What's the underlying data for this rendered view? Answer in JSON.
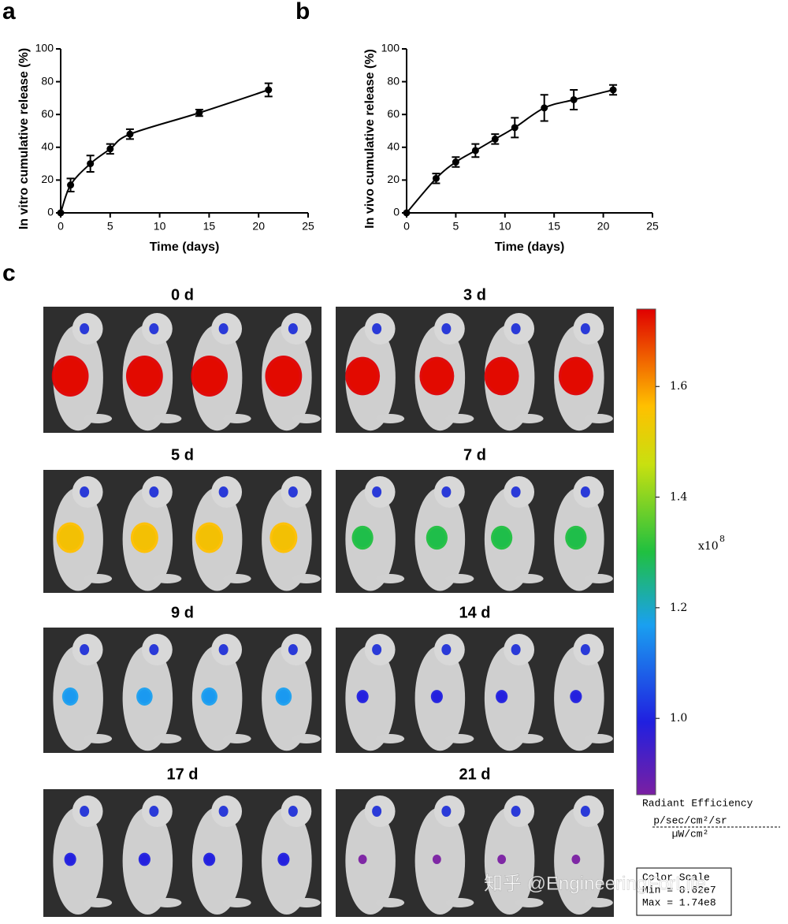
{
  "panel_labels": [
    "a",
    "b",
    "c"
  ],
  "chart_data": [
    {
      "type": "line",
      "xlabel": "Time (days)",
      "ylabel": "In vitro cumulative release (%)",
      "x": [
        0,
        1,
        3,
        5,
        7,
        14,
        21
      ],
      "series": [
        {
          "color": "#000000",
          "values": [
            0,
            17,
            30,
            39,
            48,
            61,
            75
          ],
          "errors": [
            0,
            4,
            5,
            3,
            3,
            2,
            4
          ]
        }
      ],
      "xlim": [
        0,
        25
      ],
      "xticks": [
        0,
        5,
        10,
        15,
        20,
        25
      ],
      "ylim": [
        0,
        100
      ],
      "yticks": [
        0,
        20,
        40,
        60,
        80,
        100
      ]
    },
    {
      "type": "line",
      "xlabel": "Time (days)",
      "ylabel": "In vivo cumulative release (%)",
      "x": [
        0,
        3,
        5,
        7,
        9,
        11,
        14,
        17,
        21
      ],
      "series": [
        {
          "color": "#000000",
          "values": [
            0,
            21,
            31,
            38,
            45,
            52,
            64,
            69,
            75
          ],
          "errors": [
            0,
            3,
            3,
            4,
            3,
            6,
            8,
            6,
            3
          ]
        }
      ],
      "xlim": [
        0,
        25
      ],
      "xticks": [
        0,
        5,
        10,
        15,
        20,
        25
      ],
      "ylim": [
        0,
        100
      ],
      "yticks": [
        0,
        20,
        40,
        60,
        80,
        100
      ]
    }
  ],
  "imaging": {
    "panels": [
      "0 d",
      "3 d",
      "5 d",
      "7 d",
      "9 d",
      "14 d",
      "17 d",
      "21 d"
    ],
    "colorbar": {
      "lim": [
        0.862,
        1.74
      ],
      "ticks": [
        {
          "value": 1,
          "label": "1.0"
        },
        1.2,
        1.4,
        1.6
      ]
    },
    "exponent_base": "x10",
    "exponent": "8",
    "unit_title": "Radiant Efficiency",
    "unit_numerator": "p/sec/cm²/sr",
    "unit_denominator": "µW/cm²",
    "scale_box": [
      "Color Scale",
      "Min = 8.62e7",
      "Max = 1.74e8"
    ]
  },
  "watermark": "知乎 @EngineeringForLife"
}
